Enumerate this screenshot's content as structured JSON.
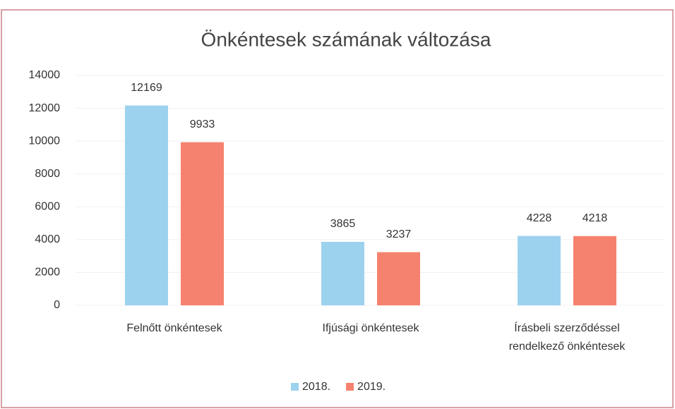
{
  "chart_data": {
    "type": "bar",
    "title": "Önkéntesek számának változása",
    "categories": [
      "Felnőtt önkéntesek",
      "Ifjúsági önkéntesek",
      "Írásbeli szerződéssel rendelkező önkéntesek"
    ],
    "series": [
      {
        "name": "2018.",
        "color": "#9dd2ef",
        "values": [
          12169,
          3865,
          4228
        ]
      },
      {
        "name": "2019.",
        "color": "#f5826e",
        "values": [
          9933,
          3237,
          4218
        ]
      }
    ],
    "ylim": [
      0,
      14000
    ],
    "yticks": [
      0,
      2000,
      4000,
      6000,
      8000,
      10000,
      12000,
      14000
    ],
    "grid": true,
    "legend": "bottom"
  }
}
